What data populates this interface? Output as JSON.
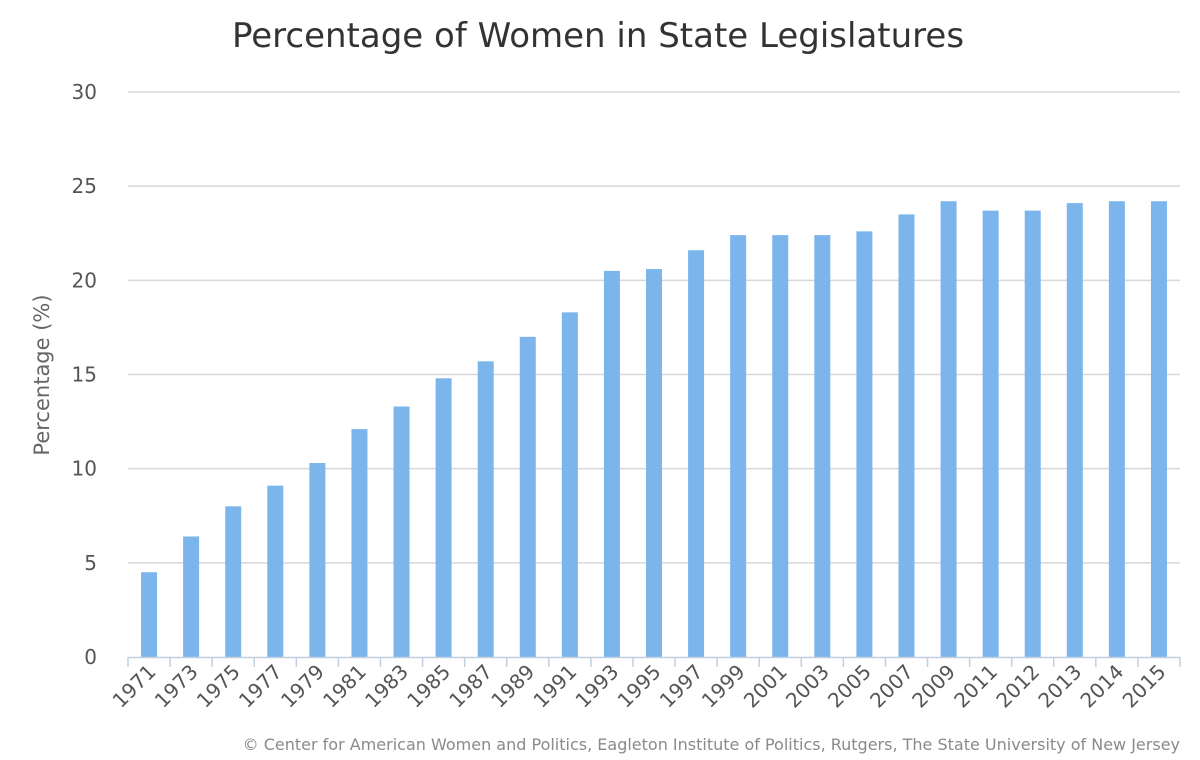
{
  "chart_data": {
    "type": "bar",
    "title": "Percentage of Women in State Legislatures",
    "xlabel": "",
    "ylabel": "Percentage (%)",
    "ylim": [
      0,
      30
    ],
    "yticks": [
      0,
      5,
      10,
      15,
      20,
      25,
      30
    ],
    "grid": true,
    "legend": "none",
    "bar_color": "#7cb5ec",
    "categories": [
      "1971",
      "1973",
      "1975",
      "1977",
      "1979",
      "1981",
      "1983",
      "1985",
      "1987",
      "1989",
      "1991",
      "1993",
      "1995",
      "1997",
      "1999",
      "2001",
      "2003",
      "2005",
      "2007",
      "2009",
      "2011",
      "2012",
      "2013",
      "2014",
      "2015"
    ],
    "values": [
      4.5,
      6.4,
      8.0,
      9.1,
      10.3,
      12.1,
      13.3,
      14.8,
      15.7,
      17.0,
      18.3,
      20.5,
      20.6,
      21.6,
      22.4,
      22.4,
      22.4,
      22.6,
      23.5,
      24.2,
      23.7,
      23.7,
      24.1,
      24.2,
      24.2
    ]
  },
  "credit": "© Center for American Women and Politics, Eagleton Institute of Politics, Rutgers, The State University of New Jersey"
}
